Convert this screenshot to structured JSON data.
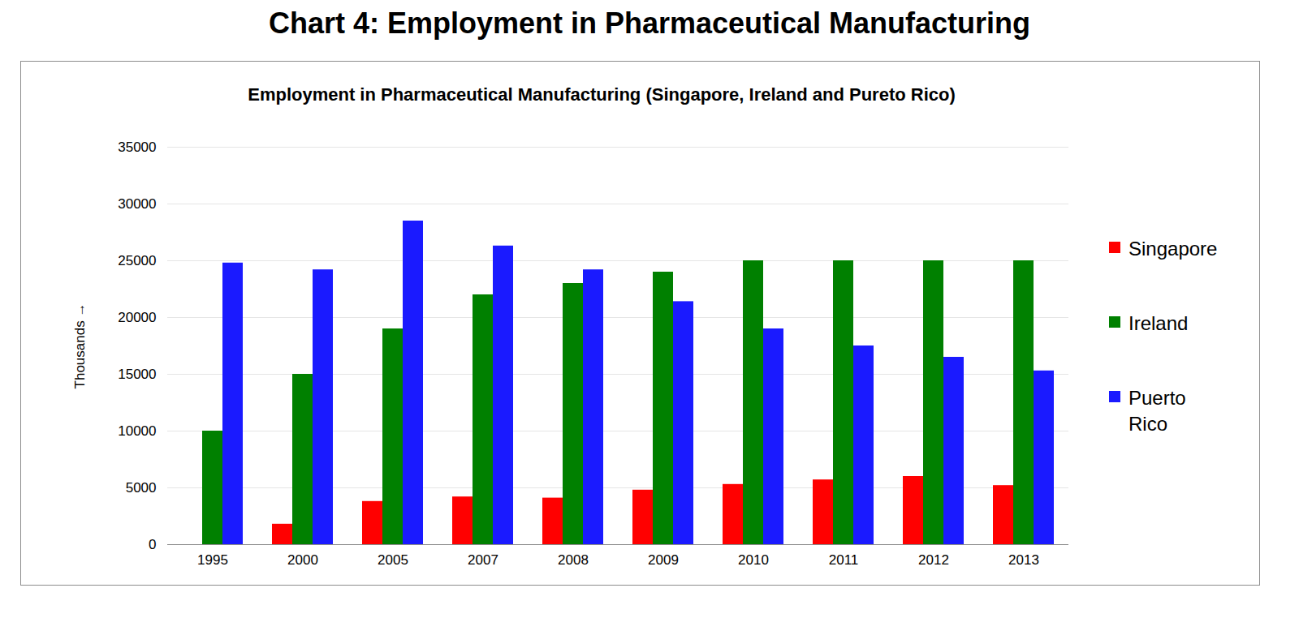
{
  "heading": "Chart 4: Employment in Pharmaceutical Manufacturing",
  "chart_data": {
    "type": "bar",
    "title": "Employment in Pharmaceutical Manufacturing (Singapore, Ireland and Pureto Rico)",
    "ylabel": "Thousands",
    "categories": [
      "1995",
      "2000",
      "2005",
      "2007",
      "2008",
      "2009",
      "2010",
      "2011",
      "2012",
      "2013"
    ],
    "series": [
      {
        "name": "Singapore",
        "color": "#ff0000",
        "values": [
          null,
          1800,
          3800,
          4200,
          4100,
          4800,
          5300,
          5700,
          6000,
          5200
        ]
      },
      {
        "name": "Ireland",
        "color": "#008000",
        "values": [
          10000,
          15000,
          19000,
          22000,
          23000,
          24000,
          25000,
          25000,
          25000,
          25000
        ]
      },
      {
        "name": "Puerto Rico",
        "color": "#1a1aff",
        "values": [
          24800,
          24200,
          28500,
          26300,
          24200,
          21400,
          19000,
          17500,
          16500,
          15300
        ]
      }
    ],
    "ylim": [
      0,
      35000
    ],
    "yticks": [
      0,
      5000,
      10000,
      15000,
      20000,
      25000,
      30000,
      35000
    ],
    "grid": true,
    "legend": "right"
  }
}
